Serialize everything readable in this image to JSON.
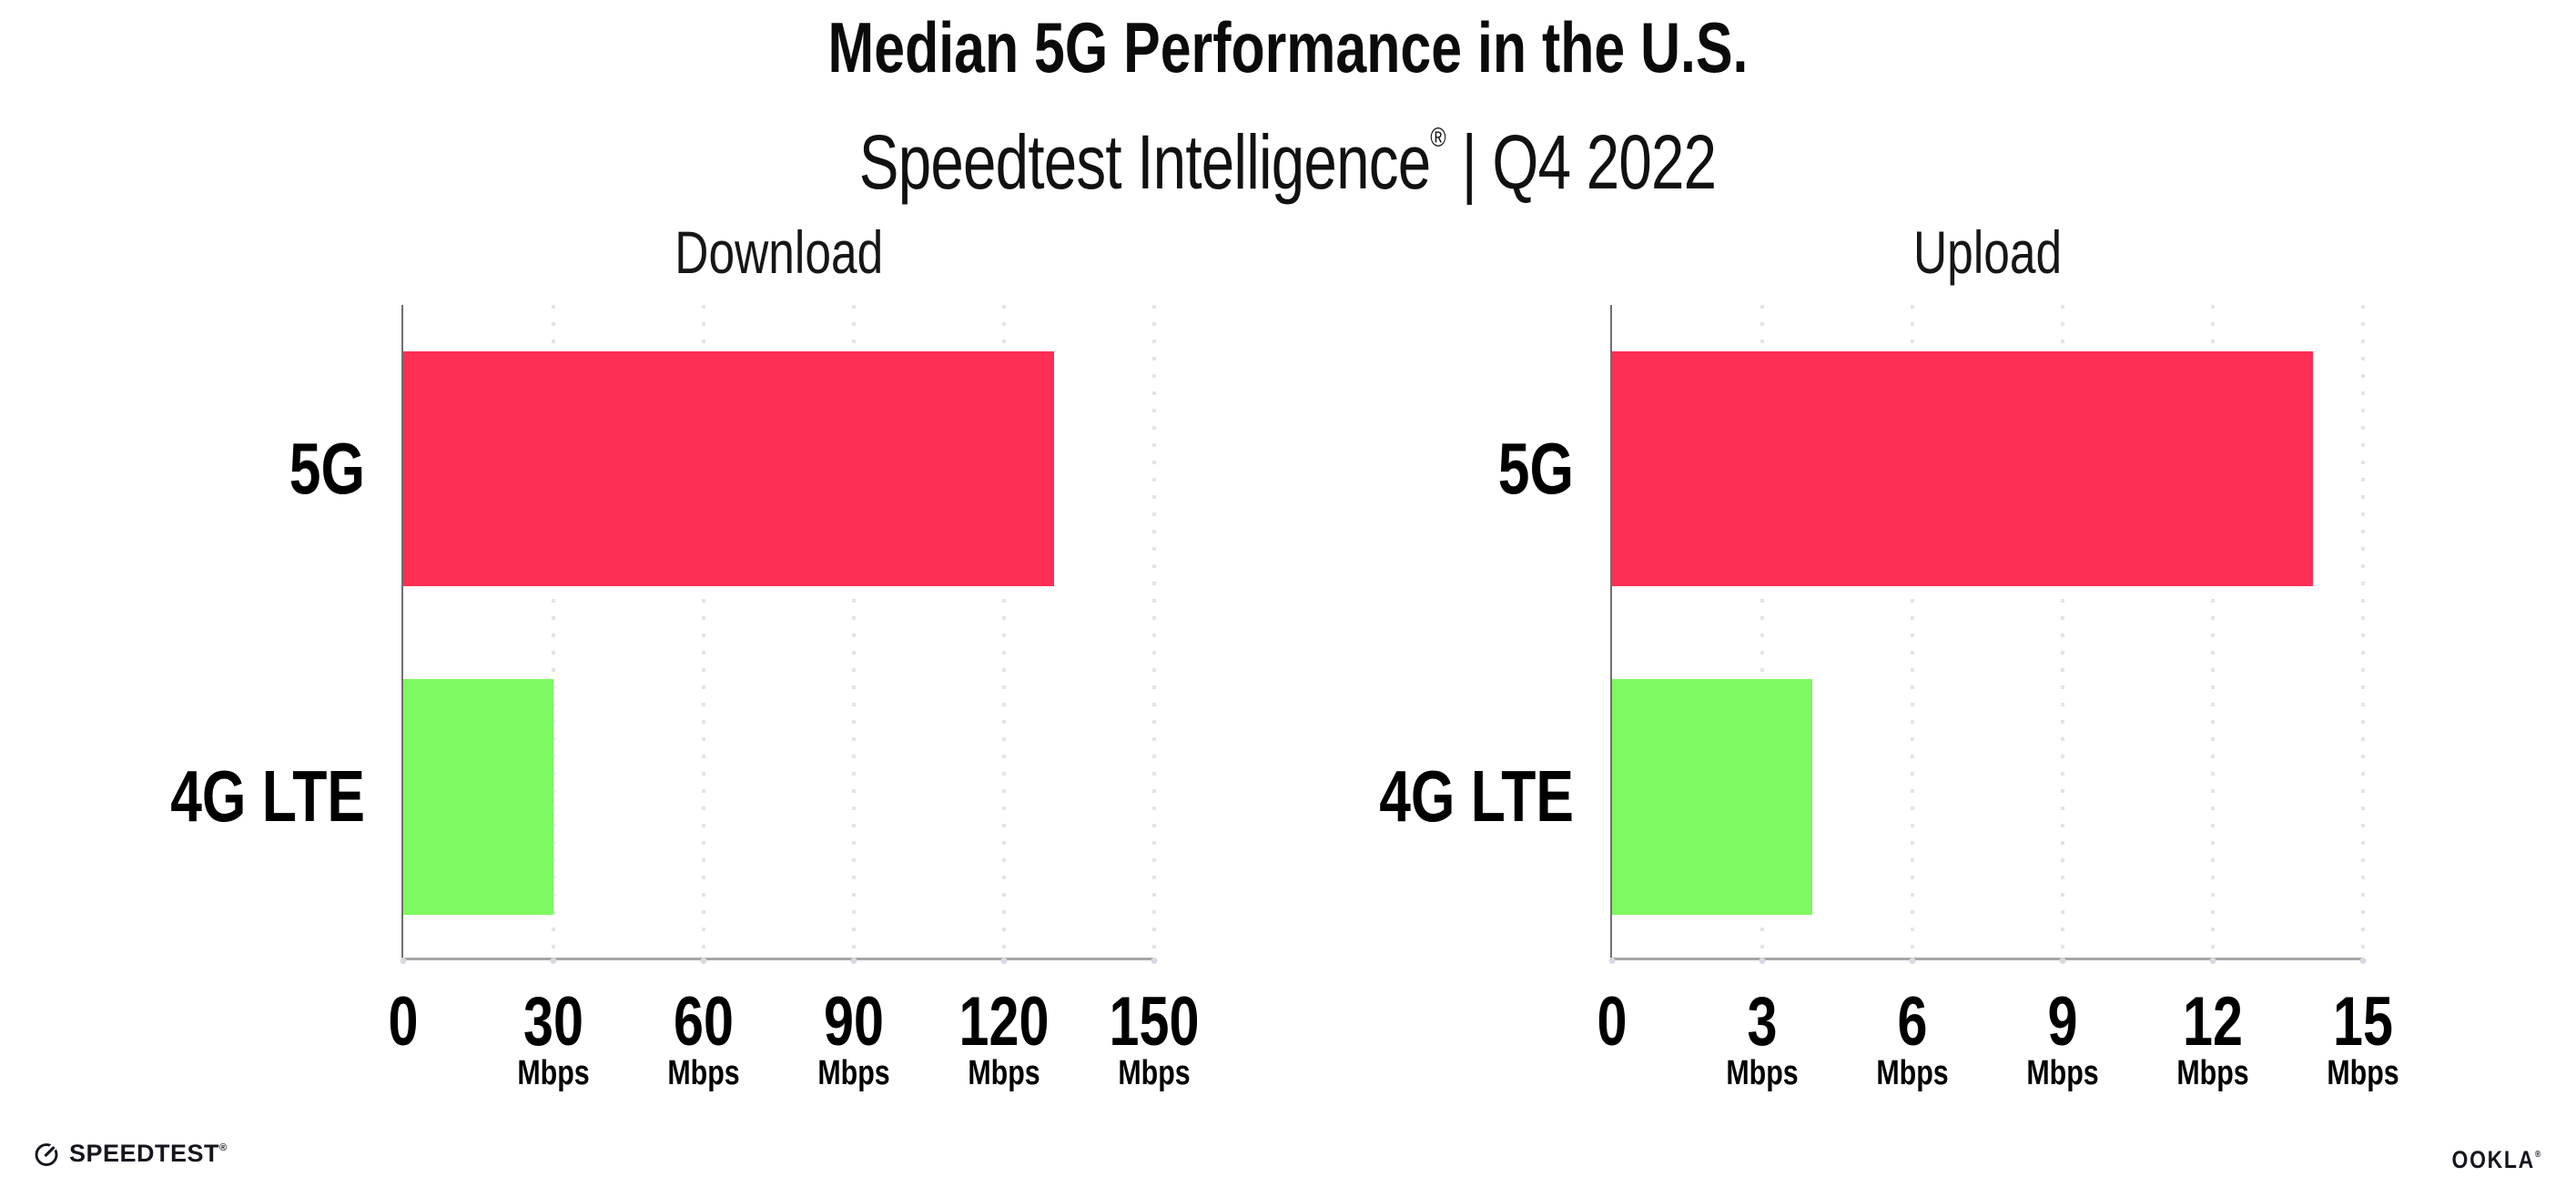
{
  "header": {
    "title": "Median 5G Performance in the U.S.",
    "subtitle_brand": "Speedtest Intelligence",
    "subtitle_reg": "®",
    "subtitle_rest": "| Q4 2022"
  },
  "chart_data": [
    {
      "type": "bar",
      "orientation": "horizontal",
      "title": "Download",
      "categories": [
        "5G",
        "4G LTE"
      ],
      "values": [
        130,
        30
      ],
      "values_estimated": true,
      "unit": "Mbps",
      "xlabel": "",
      "ylabel": "",
      "xlim": [
        0,
        150
      ],
      "ticks": [
        0,
        30,
        60,
        90,
        120,
        150
      ],
      "bar_colors": [
        "#FF2E55",
        "#7DF961"
      ],
      "grid": "vertical-dotted",
      "legend": "none"
    },
    {
      "type": "bar",
      "orientation": "horizontal",
      "title": "Upload",
      "categories": [
        "5G",
        "4G LTE"
      ],
      "values": [
        14,
        4
      ],
      "values_estimated": true,
      "unit": "Mbps",
      "xlabel": "",
      "ylabel": "",
      "xlim": [
        0,
        15
      ],
      "ticks": [
        0,
        3,
        6,
        9,
        12,
        15
      ],
      "bar_colors": [
        "#FF2E55",
        "#7DF961"
      ],
      "grid": "vertical-dotted",
      "legend": "none"
    }
  ],
  "footer": {
    "speedtest_logo": "SPEEDTEST",
    "speedtest_reg": "®",
    "ookla_logo": "OOKLA",
    "ookla_reg": "®"
  },
  "colors": {
    "background": "#FFFFFF",
    "bar_5g": "#FF2E55",
    "bar_4g_lte": "#7DF961",
    "gridline": "#E3E3EC",
    "axis_line": "#A6A6A6",
    "y_spine": "#6F6F6F",
    "text": "#000000",
    "logo_text": "#16161F"
  }
}
